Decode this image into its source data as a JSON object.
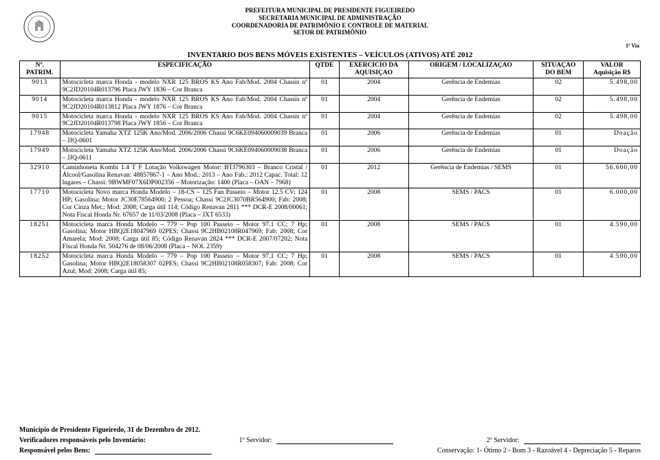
{
  "header": {
    "line1": "PREFEITURA MUNICIPAL DE PRESIDENTE FIGUEIREDO",
    "line2": "SECRETARIA MUNICIPAL DE ADMINISTRAÇÃO",
    "line3": "COORDENADORIA DE PATRIMÔNIO E CONTROLE DE MATERIAL",
    "line4": "SETOR DE PATRIMÔNIO",
    "via": "1ª Via"
  },
  "inventory_title": "INVENTARIO DOS BENS MÓVEIS EXISTENTES – VEÍCULOS (ATIVOS) ATÉ 2012",
  "columns": {
    "c1a": "Nº.",
    "c1b": "PATRIM.",
    "c2": "ESPECIFICAÇÃO",
    "c3": "QTDE",
    "c4a": "EXERCICIO DA",
    "c4b": "AQUISIÇAO",
    "c5": "ORIGEM / LOCALIZAÇAO",
    "c6a": "SITUAÇAO",
    "c6b": "DO BEM",
    "c7a": "VALOR",
    "c7b": "Aquisição R$"
  },
  "rows": [
    {
      "num": "9013",
      "spec": "Motocicleta marca Honda - modelo NXR 125 BROS KS Ano Fab/Mod. 2004 Chassis nº 9C2JD20104R013796 Placa JWY 1836 – Cor Branca",
      "qtde": "01",
      "exerc": "2004",
      "origem": "Gerência de Endemias",
      "sit": "02",
      "valor": "5.498,00"
    },
    {
      "num": "9014",
      "spec": "Motocicleta marca Honda - modelo NXR 125 BROS KS Ano Fab/Mod. 2004 Chassis nº 9C2JD20104R013812 Placa JWY 1876 – Cor Branca",
      "qtde": "01",
      "exerc": "2004",
      "origem": "Gerência de Endemias",
      "sit": "02",
      "valor": "5.498,00"
    },
    {
      "num": "9015",
      "spec": "Motocicleta marca Honda - modelo NXR 125 BROS KS Ano Fab/Mod. 2004 Chassis nº 9C2JD20104R013798 Placa JWY 1856 – Cor Branca",
      "qtde": "01",
      "exerc": "2004",
      "origem": "Gerência de Endemias",
      "sit": "02",
      "valor": "5.498,00"
    },
    {
      "num": "17948",
      "spec": "Motocicleta Yamaha XTZ 125K Ano/Mod. 2006/2006 Chassi 9C6KE094060009039 Branca – JJQ-0601",
      "qtde": "01",
      "exerc": "2006",
      "origem": "Gerência de Endemias",
      "sit": "01",
      "valor": "Doação"
    },
    {
      "num": "17949",
      "spec": "Motocicleta Yamaha XTZ 125K Ano/Mod. 2006/2006 Chassi 9C6KE094060009038 Branca – JJQ-0611",
      "qtde": "01",
      "exerc": "2006",
      "origem": "Gerência de Endemias",
      "sit": "01",
      "valor": "Doação"
    },
    {
      "num": "32910",
      "spec": "Caminhoneta Kombi 1.4 T F Lotação Volkswagen   Motor: BTJ796303 – Branco Cristal / Álcool/Gasolina Renavan: 48857867-1 – Ano Mod.: 2013 – Ano Fab.: 2012 Capac. Total: 12 lugares – Chassi: 9BWMF07X6DP002356 – Motorização: 1400 (Placa – OAN – 7968)",
      "qtde": "01",
      "exerc": "2012",
      "origem": "Gerência de Endemias / SEMS",
      "sit": "01",
      "valor": "56.600,00"
    },
    {
      "num": "17710",
      "spec": "Motocicleta Novo marca Honda Modelo – 18-CS – 125 Fan Passeio – Motor 12.5 CV; 124 HP; Gasolina; Motor JC30E78564900; 2 Pessoa; Chassi 9C2JC3070BR564900; Fab: 2008; Cor Cinza Met.; Mod: 2008; Carga útil 114; Código Renavan 2811 *** DCR-E 2008/00061; Nota Fiscal Honda Nr. 67657 de 11/03/2008 (Placa – JXT 6533)",
      "qtde": "01",
      "exerc": "2008",
      "origem": "SEMS / PACS",
      "sit": "01",
      "valor": "6.000,00"
    },
    {
      "num": "18251",
      "spec": "Motocicleta marca Honda Modelo – 779 – Pop 100 Passeio – Motor 97.1 CC; 7 Hp; Gasolina; Motor HBQ2E18047969 02PES; Chassi 9C2HB02108R047969; Fab: 2008; Cor Amarela; Mod: 2008; Carga útil 85; Código Renavan 2824 *** DCR-E 2007/07202; Nota Fiscal Honda Nr. 504276 de 08/06/2008 (Placa – NOL 2359)",
      "qtde": "01",
      "exerc": "2008",
      "origem": "SEMS / PACS",
      "sit": "01",
      "valor": "4.590,00"
    },
    {
      "num": "18252",
      "spec": "Motocicleta marca Honda Modelo – 779 – Pop 100 Passeio – Motor 97.1 CC; 7 Hp; Gasolina; Motor HBQ2E18058307 02PES; Chassi 9C2HB02108R058307; Fab: 2008; Cor Azul; Mod: 2008; Carga útil 85;",
      "qtde": "01",
      "exerc": "2008",
      "origem": "SEMS / PACS",
      "sit": "01",
      "valor": "4.590,00"
    }
  ],
  "footer": {
    "line1": "Município de Presidente Figueiredo, 31 de Dezembro de 2012.",
    "verif": "Verificadores responsáveis pelo Inventário:",
    "serv1": "1º Servidor:",
    "serv2": "2º Servidor:",
    "resp": "Responsável pelos Bens:",
    "cons": "Conservação:  1- Ótimo  2 - Bom  3 - Razoável  4 - Depreciação  5 - Reparos"
  },
  "seal_caption_top": "Prefeitura Municipal",
  "seal_caption_bottom": "de Presidente Figueiredo"
}
